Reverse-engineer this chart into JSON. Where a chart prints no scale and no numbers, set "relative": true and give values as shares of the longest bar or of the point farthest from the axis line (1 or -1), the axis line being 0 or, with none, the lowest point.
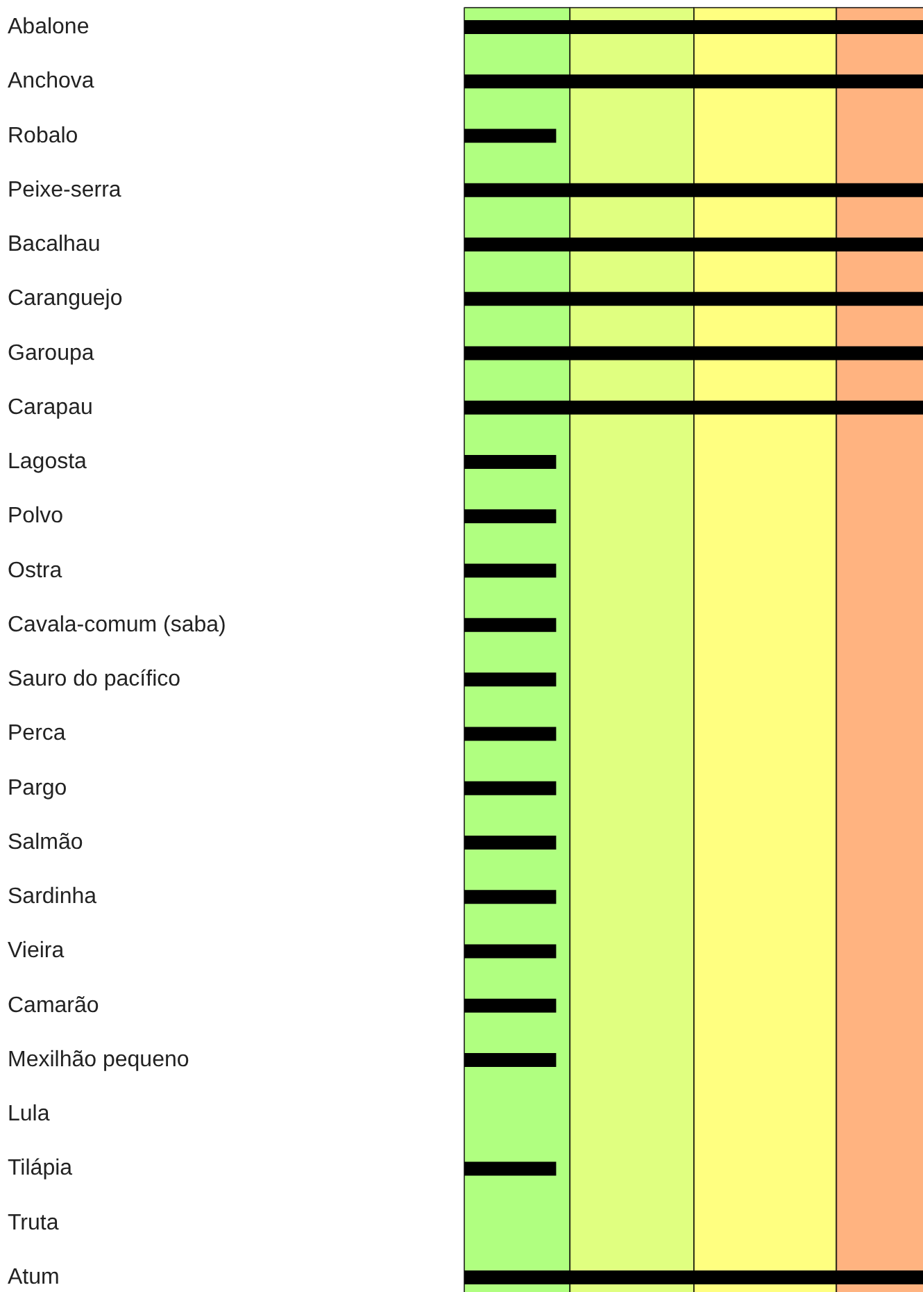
{
  "chart_data": {
    "type": "bar",
    "orientation": "horizontal",
    "relative": true,
    "color": "#000000",
    "categories": [
      "Abalone",
      "Anchova",
      "Robalo",
      "Peixe-serra",
      "Bacalhau",
      "Caranguejo",
      "Garoupa",
      "Carapau",
      "Lagosta",
      "Polvo",
      "Ostra",
      "Cavala-comum (saba)",
      "Sauro do pacífico",
      "Perca",
      "Pargo",
      "Salmão",
      "Sardinha",
      "Vieira",
      "Camarão",
      "Mexilhão pequeno",
      "Lula",
      "Tilápia",
      "Truta",
      "Atum"
    ],
    "values": [
      1,
      1,
      0.2,
      1,
      1,
      1,
      1,
      1,
      0.2,
      0.2,
      0.2,
      0.2,
      0.2,
      0.2,
      0.2,
      0.2,
      0.2,
      0.2,
      0.2,
      0.2,
      null,
      0.2,
      null,
      1
    ],
    "bands": [
      {
        "axis": "x",
        "from": 0,
        "to": 0.23,
        "color": "#b0ff80"
      },
      {
        "axis": "x",
        "from": 0.23,
        "to": 0.5,
        "color": "#e0ff80"
      },
      {
        "axis": "x",
        "from": 0.5,
        "to": 0.81,
        "color": "#ffff80"
      },
      {
        "axis": "x",
        "from": 0.81,
        "to": 1,
        "color": "#ffb380"
      }
    ],
    "grid": false,
    "legend": false
  }
}
